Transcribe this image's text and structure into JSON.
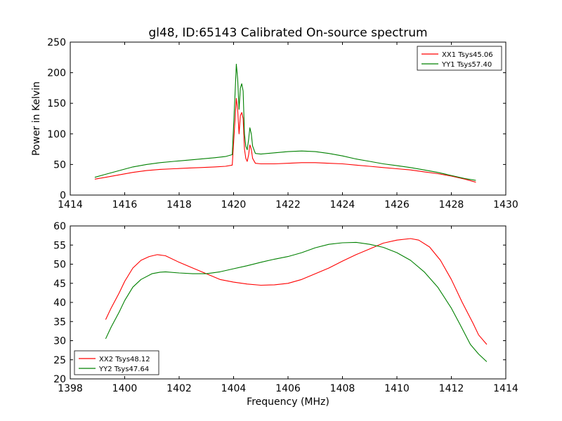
{
  "chart_data": [
    {
      "type": "line",
      "title": "gl48, ID:65143 Calibrated On-source spectrum",
      "xlabel": "",
      "ylabel": "Power in Kelvin",
      "xlim": [
        1414,
        1430
      ],
      "ylim": [
        0,
        250
      ],
      "xticks": [
        1414,
        1416,
        1418,
        1420,
        1422,
        1424,
        1426,
        1428,
        1430
      ],
      "yticks": [
        0,
        50,
        100,
        150,
        200,
        250
      ],
      "legend_position": "top-right",
      "series": [
        {
          "name": "XX1 Tsys45.06",
          "color": "#ff0000",
          "x": [
            1414.9,
            1415.3,
            1415.8,
            1416.3,
            1416.8,
            1417.3,
            1417.8,
            1418.3,
            1418.8,
            1419.3,
            1419.7,
            1419.95,
            1420.05,
            1420.1,
            1420.15,
            1420.2,
            1420.25,
            1420.3,
            1420.35,
            1420.4,
            1420.45,
            1420.5,
            1420.55,
            1420.6,
            1420.65,
            1420.7,
            1420.8,
            1421.0,
            1421.5,
            1422.0,
            1422.5,
            1423.0,
            1423.5,
            1424.0,
            1424.5,
            1425.0,
            1425.5,
            1426.0,
            1426.5,
            1427.0,
            1427.5,
            1428.0,
            1428.5,
            1428.9
          ],
          "y": [
            26,
            29,
            33,
            37,
            40,
            42,
            43,
            44,
            45,
            46,
            47,
            49,
            120,
            158,
            140,
            100,
            130,
            135,
            125,
            75,
            60,
            55,
            65,
            82,
            75,
            60,
            52,
            51,
            51,
            52,
            53,
            53,
            52,
            51,
            49,
            47,
            45,
            43,
            41,
            38,
            35,
            31,
            26,
            21
          ]
        },
        {
          "name": "YY1 Tsys57.40",
          "color": "#008000",
          "x": [
            1414.9,
            1415.3,
            1415.8,
            1416.3,
            1416.8,
            1417.3,
            1417.8,
            1418.3,
            1418.8,
            1419.3,
            1419.7,
            1419.95,
            1420.05,
            1420.1,
            1420.15,
            1420.2,
            1420.25,
            1420.3,
            1420.35,
            1420.4,
            1420.45,
            1420.5,
            1420.55,
            1420.6,
            1420.65,
            1420.7,
            1420.8,
            1421.0,
            1421.5,
            1422.0,
            1422.5,
            1423.0,
            1423.5,
            1424.0,
            1424.5,
            1425.0,
            1425.5,
            1426.0,
            1426.5,
            1427.0,
            1427.5,
            1428.0,
            1428.5,
            1428.9
          ],
          "y": [
            29,
            34,
            40,
            46,
            50,
            53,
            55,
            57,
            59,
            61,
            63,
            66,
            160,
            214,
            190,
            140,
            175,
            182,
            170,
            100,
            80,
            74,
            90,
            110,
            100,
            80,
            68,
            67,
            69,
            71,
            72,
            71,
            68,
            64,
            59,
            55,
            51,
            48,
            45,
            41,
            37,
            32,
            27,
            24
          ]
        }
      ]
    },
    {
      "type": "line",
      "title": "",
      "xlabel": "Frequency (MHz)",
      "ylabel": "",
      "xlim": [
        1398,
        1414
      ],
      "ylim": [
        20,
        60
      ],
      "xticks": [
        1398,
        1400,
        1402,
        1404,
        1406,
        1408,
        1410,
        1412,
        1414
      ],
      "yticks": [
        20,
        25,
        30,
        35,
        40,
        45,
        50,
        55,
        60
      ],
      "legend_position": "bottom-left",
      "series": [
        {
          "name": "XX2 Tsys48.12",
          "color": "#ff0000",
          "x": [
            1399.3,
            1399.5,
            1399.8,
            1400.0,
            1400.3,
            1400.6,
            1400.9,
            1401.2,
            1401.5,
            1402.0,
            1402.5,
            1403.0,
            1403.5,
            1404.0,
            1404.5,
            1405.0,
            1405.5,
            1406.0,
            1406.5,
            1407.0,
            1407.5,
            1408.0,
            1408.5,
            1409.0,
            1409.5,
            1410.0,
            1410.5,
            1410.8,
            1411.2,
            1411.6,
            1412.0,
            1412.4,
            1412.8,
            1413.0,
            1413.3
          ],
          "y": [
            35.5,
            38.5,
            42.5,
            45.5,
            49.0,
            51.0,
            52.0,
            52.5,
            52.2,
            50.5,
            49.0,
            47.5,
            46.0,
            45.3,
            44.8,
            44.5,
            44.6,
            45.0,
            46.0,
            47.5,
            49.0,
            50.8,
            52.5,
            54.0,
            55.5,
            56.3,
            56.7,
            56.3,
            54.5,
            51.0,
            46.0,
            40.0,
            34.5,
            31.5,
            29.0
          ]
        },
        {
          "name": "YY2 Tsys47.64",
          "color": "#008000",
          "x": [
            1399.3,
            1399.5,
            1399.8,
            1400.0,
            1400.3,
            1400.6,
            1401.0,
            1401.3,
            1401.5,
            1402.0,
            1402.5,
            1403.0,
            1403.5,
            1404.0,
            1404.5,
            1405.0,
            1405.5,
            1406.0,
            1406.5,
            1407.0,
            1407.5,
            1408.0,
            1408.5,
            1409.0,
            1409.5,
            1410.0,
            1410.5,
            1411.0,
            1411.5,
            1412.0,
            1412.3,
            1412.7,
            1413.0,
            1413.3
          ],
          "y": [
            30.5,
            33.5,
            37.5,
            40.5,
            44.0,
            46.0,
            47.5,
            47.9,
            48.0,
            47.7,
            47.5,
            47.5,
            48.0,
            48.8,
            49.6,
            50.5,
            51.3,
            52.0,
            53.0,
            54.3,
            55.2,
            55.6,
            55.7,
            55.2,
            54.4,
            53.0,
            51.0,
            48.0,
            44.0,
            38.5,
            34.5,
            29.0,
            26.5,
            24.5
          ]
        }
      ]
    }
  ]
}
